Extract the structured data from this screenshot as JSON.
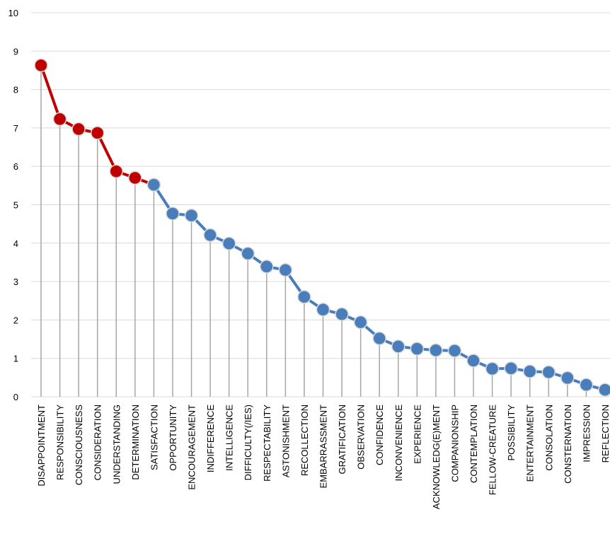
{
  "chart_data": {
    "type": "line",
    "categories": [
      "DISAPPOINTMENT",
      "RESPONSIBILITY",
      "CONSCIOUSNESS",
      "CONSIDERATION",
      "UNDERSTANDING",
      "DETERMINATION",
      "SATISFACTION",
      "OPPORTUNITY",
      "ENCOURAGEMENT",
      "INDIFFERENCE",
      "INTELLIGENCE",
      "DIFFICULTY(/IES)",
      "RESPECTABILITY",
      "ASTONISHMENT",
      "RECOLLECTION",
      "EMBARRASSMENT",
      "GRATIFICATION",
      "OBSERVATION",
      "CONFIDENCE",
      "INCONVENIENCE",
      "EXPERIENCE",
      "ACKNOWLEDG(E)MENT",
      "COMPANIONSHIP",
      "CONTEMPLATION",
      "FELLOW-CREATURE",
      "POSSIBILITY",
      "ENTERTAINMENT",
      "CONSOLATION",
      "CONSTERNATION",
      "IMPRESSION",
      "REFLECTION"
    ],
    "series": [
      {
        "color": "#c00000",
        "values": [
          8.63,
          7.23,
          6.97,
          6.87,
          5.87,
          5.7,
          5.52,
          null,
          null,
          null,
          null,
          null,
          null,
          null,
          null,
          null,
          null,
          null,
          null,
          null,
          null,
          null,
          null,
          null,
          null,
          null,
          null,
          null,
          null,
          null,
          null
        ]
      },
      {
        "color": "#4a7ebb",
        "values": [
          null,
          null,
          null,
          null,
          null,
          null,
          5.52,
          4.77,
          4.72,
          4.21,
          3.99,
          3.73,
          3.39,
          3.3,
          2.6,
          2.27,
          2.15,
          1.94,
          1.52,
          1.31,
          1.25,
          1.21,
          1.2,
          0.94,
          0.73,
          0.74,
          0.66,
          0.64,
          0.49,
          0.31,
          0.18
        ]
      }
    ],
    "ylim": [
      0,
      10
    ],
    "yticks": [
      0,
      1,
      2,
      3,
      4,
      5,
      6,
      7,
      8,
      9,
      10
    ],
    "grid": true,
    "drop_lines": true
  }
}
